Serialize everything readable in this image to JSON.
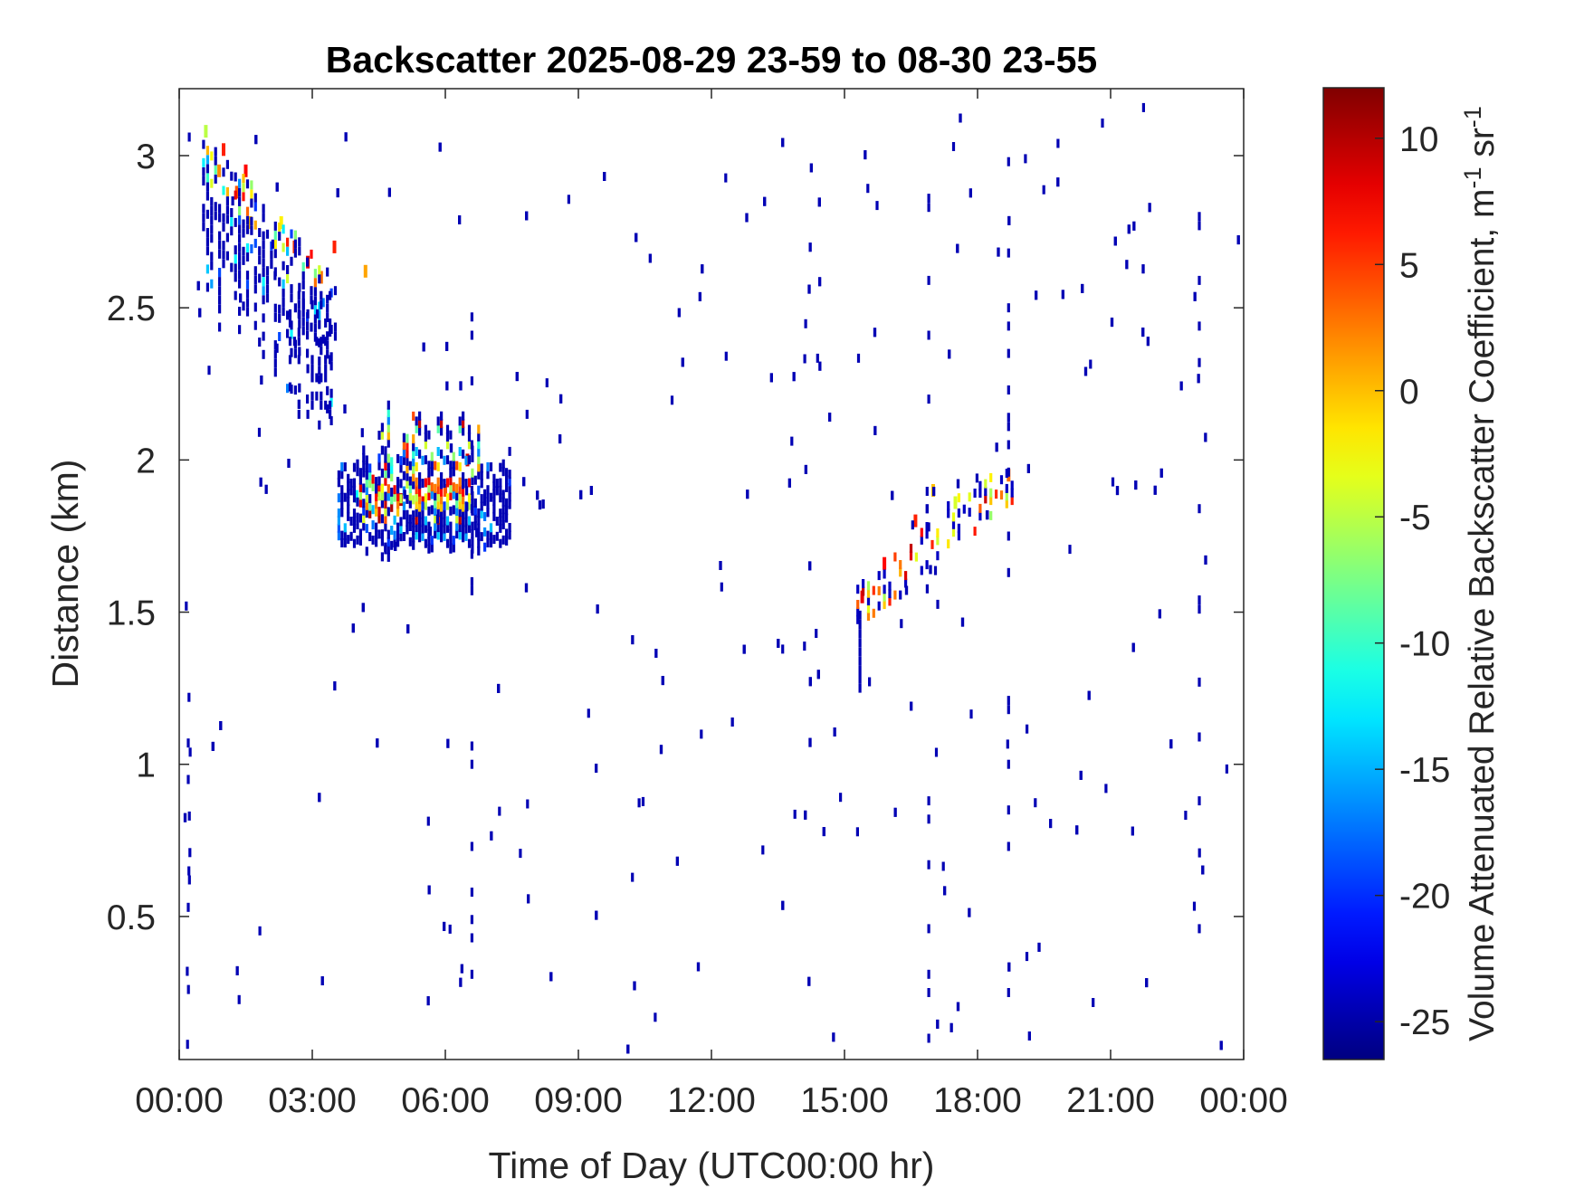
{
  "chart_data": {
    "type": "heatmap",
    "title": "Backscatter 2025-08-29 23-59 to 08-30 23-55",
    "xlabel": "Time of Day (UTC00:00 hr)",
    "ylabel": "Distance (km)",
    "xlim": [
      0,
      24
    ],
    "ylim": [
      0.03,
      3.22
    ],
    "x_ticks": [
      {
        "value": 0,
        "label": "00:00"
      },
      {
        "value": 3,
        "label": "03:00"
      },
      {
        "value": 6,
        "label": "06:00"
      },
      {
        "value": 9,
        "label": "09:00"
      },
      {
        "value": 12,
        "label": "12:00"
      },
      {
        "value": 15,
        "label": "15:00"
      },
      {
        "value": 18,
        "label": "18:00"
      },
      {
        "value": 21,
        "label": "21:00"
      },
      {
        "value": 24,
        "label": "00:00"
      }
    ],
    "y_ticks": [
      {
        "value": 0.5,
        "label": "0.5"
      },
      {
        "value": 1.0,
        "label": "1"
      },
      {
        "value": 1.5,
        "label": "1.5"
      },
      {
        "value": 2.0,
        "label": "2"
      },
      {
        "value": 2.5,
        "label": "2.5"
      },
      {
        "value": 3.0,
        "label": "3"
      }
    ],
    "colorbar": {
      "label": "Volume Attenuated Relative Backscatter Coefficient, m",
      "label_sup1": "-1",
      "label_mid": " sr",
      "label_sup2": "-1",
      "range": [
        -26.5,
        12
      ],
      "colormap": "jet",
      "ticks": [
        {
          "value": 10,
          "label": "10"
        },
        {
          "value": 5,
          "label": "5"
        },
        {
          "value": 0,
          "label": "0"
        },
        {
          "value": -5,
          "label": "-5"
        },
        {
          "value": -10,
          "label": "-10"
        },
        {
          "value": -15,
          "label": "-15"
        },
        {
          "value": -20,
          "label": "-20"
        },
        {
          "value": -25,
          "label": "-25"
        }
      ]
    },
    "grid": false,
    "features": [
      {
        "name": "descending high cloud",
        "x": [
          0.5,
          3.6
        ],
        "y_start": [
          3.05,
          2.6
        ],
        "y_thickness_km": 0.35,
        "peak_dB": 8
      },
      {
        "name": "cloud layer 1.9 km",
        "x": [
          3.6,
          7.5
        ],
        "y": [
          1.68,
          2.2
        ],
        "core_y": 1.87,
        "peak_dB": 10
      },
      {
        "name": "rising afternoon layer",
        "x": [
          15.3,
          18.9
        ],
        "y_start": [
          1.5,
          1.95
        ],
        "peak_dB": 8
      }
    ],
    "cells": [
      {
        "x": 0.6,
        "y": 3.08,
        "v": -5
      },
      {
        "x": 0.9,
        "y": 2.95,
        "v": 2
      },
      {
        "x": 1.0,
        "y": 3.02,
        "v": 6
      },
      {
        "x": 1.3,
        "y": 2.88,
        "v": 4
      },
      {
        "x": 1.5,
        "y": 2.95,
        "v": 7
      },
      {
        "x": 1.6,
        "y": 2.78,
        "v": 0
      },
      {
        "x": 2.3,
        "y": 2.78,
        "v": -2
      },
      {
        "x": 2.6,
        "y": 2.7,
        "v": 5
      },
      {
        "x": 2.9,
        "y": 2.65,
        "v": 8
      },
      {
        "x": 3.2,
        "y": 2.6,
        "v": 3
      },
      {
        "x": 3.5,
        "y": 2.7,
        "v": 6
      },
      {
        "x": 4.2,
        "y": 2.62,
        "v": 1
      },
      {
        "x": 4.0,
        "y": 1.88,
        "v": -12
      },
      {
        "x": 4.5,
        "y": 1.9,
        "v": 6
      },
      {
        "x": 5.0,
        "y": 1.87,
        "v": 10
      },
      {
        "x": 5.5,
        "y": 1.86,
        "v": 8
      },
      {
        "x": 6.0,
        "y": 1.9,
        "v": 4
      },
      {
        "x": 6.5,
        "y": 2.0,
        "v": 9
      },
      {
        "x": 15.4,
        "y": 1.55,
        "v": 8
      },
      {
        "x": 15.9,
        "y": 1.66,
        "v": 7
      },
      {
        "x": 16.6,
        "y": 1.8,
        "v": 6
      },
      {
        "x": 17.0,
        "y": 1.9,
        "v": 0
      },
      {
        "x": 17.5,
        "y": 1.86,
        "v": -4
      },
      {
        "x": 18.7,
        "y": 1.95,
        "v": 3
      }
    ]
  }
}
